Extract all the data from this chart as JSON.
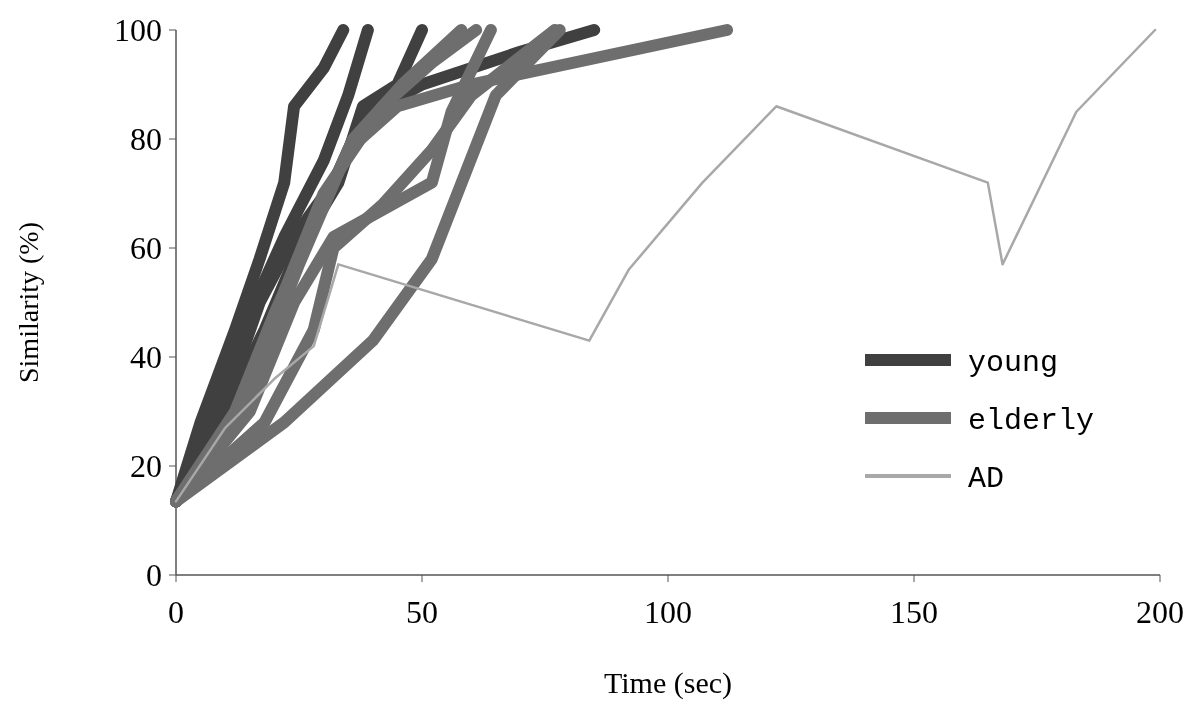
{
  "chart_data": {
    "type": "line",
    "xlabel": "Time (sec)",
    "ylabel": "Similarity (%)",
    "xlim": [
      0,
      200
    ],
    "xticks": [
      0,
      50,
      100,
      150,
      200
    ],
    "ylim": [
      0,
      100
    ],
    "yticks": [
      0,
      20,
      40,
      60,
      80,
      100
    ],
    "grid": false,
    "legend": "right",
    "marker": "none",
    "line_style": "solid",
    "series": [
      {
        "name": "young",
        "color": "#404040",
        "x": [
          0,
          5,
          12,
          17,
          22,
          24,
          30,
          34
        ],
        "values": [
          13.5,
          28,
          45,
          58,
          72,
          86,
          93,
          100
        ]
      },
      {
        "color": "#404040",
        "x": [
          0,
          8,
          15,
          22,
          30,
          35,
          39
        ],
        "values": [
          13.5,
          30,
          48,
          62,
          76,
          88,
          100
        ]
      },
      {
        "color": "#404040",
        "x": [
          0,
          10,
          18,
          25,
          33,
          38,
          45,
          50
        ],
        "values": [
          13.5,
          30,
          45,
          60,
          72,
          86,
          90,
          100
        ]
      },
      {
        "color": "#404040",
        "x": [
          0,
          10,
          17,
          24,
          32,
          38,
          50,
          70,
          85
        ],
        "values": [
          13.5,
          32,
          50,
          62,
          72,
          84,
          90,
          96,
          100
        ]
      },
      {
        "name": "elderly",
        "color": "#6e6e6e",
        "x": [
          0,
          12,
          20,
          28,
          36,
          46,
          58
        ],
        "values": [
          13.5,
          30,
          48,
          64,
          80,
          90,
          100
        ]
      },
      {
        "color": "#6e6e6e",
        "x": [
          0,
          14,
          22,
          30,
          42,
          52,
          61
        ],
        "values": [
          13.5,
          32,
          52,
          70,
          86,
          94,
          100
        ]
      },
      {
        "color": "#6e6e6e",
        "x": [
          0,
          15,
          24,
          32,
          52,
          56,
          64
        ],
        "values": [
          13.5,
          30,
          50,
          62,
          72,
          85,
          100
        ]
      },
      {
        "color": "#6e6e6e",
        "x": [
          0,
          18,
          28,
          32,
          42,
          52,
          60,
          77
        ],
        "values": [
          13.5,
          28,
          45,
          60,
          68,
          78,
          88,
          100
        ]
      },
      {
        "color": "#6e6e6e",
        "x": [
          0,
          22,
          40,
          52,
          65,
          78
        ],
        "values": [
          13.5,
          28,
          43,
          58,
          88,
          100
        ]
      },
      {
        "color": "#6e6e6e",
        "x": [
          0,
          15,
          25,
          35,
          45,
          60,
          112
        ],
        "values": [
          13.5,
          34,
          57,
          78,
          86,
          90,
          100
        ]
      },
      {
        "name": "AD",
        "color": "#a8a8a8",
        "x": [
          0,
          10,
          20,
          28,
          33,
          84,
          92,
          107,
          122,
          165,
          168,
          183,
          199
        ],
        "values": [
          13.5,
          27,
          36,
          42,
          57,
          43,
          56,
          72,
          86,
          72,
          57,
          85,
          100
        ]
      }
    ]
  }
}
